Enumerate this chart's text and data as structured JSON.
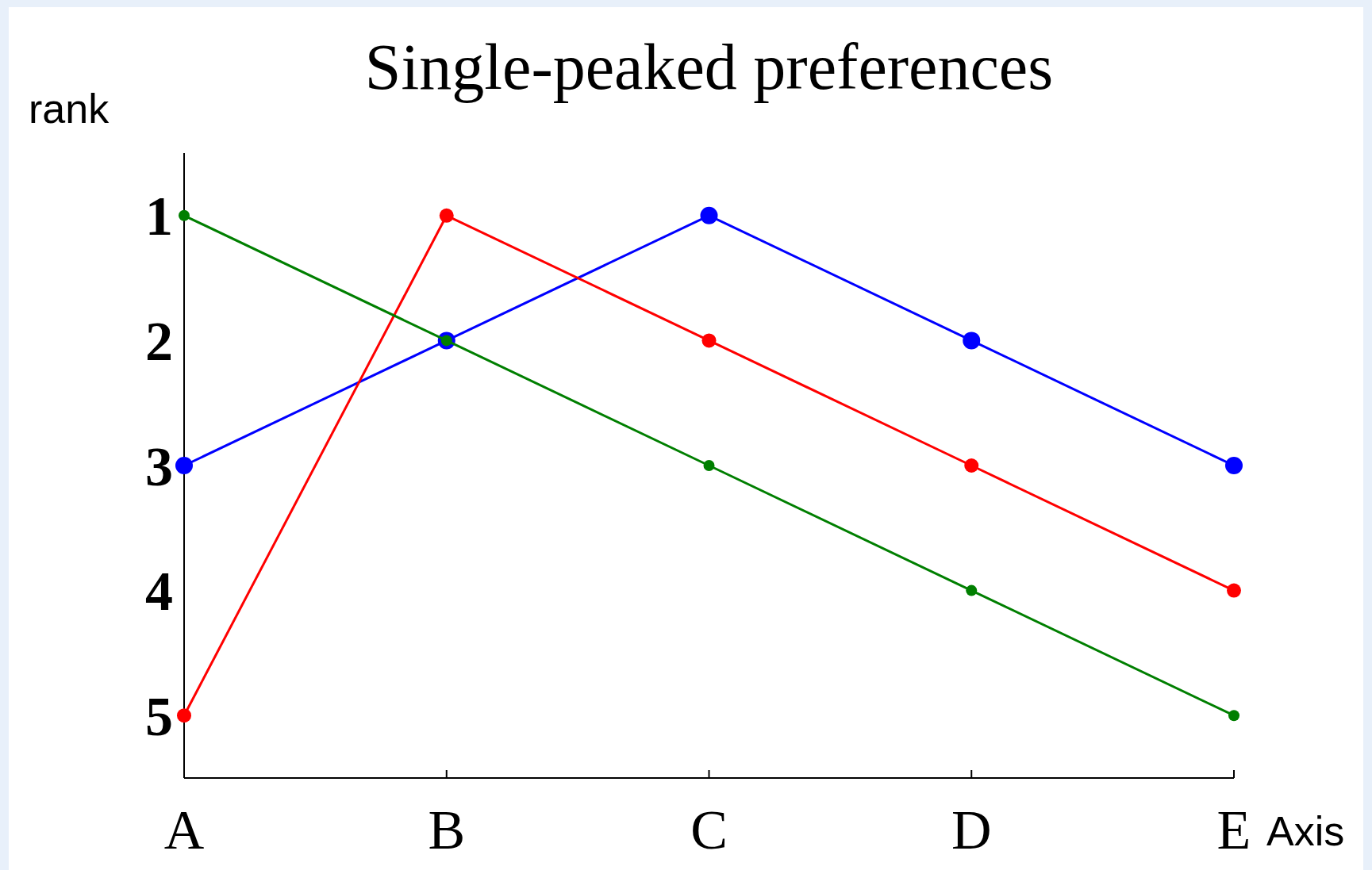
{
  "chart_data": {
    "type": "line",
    "title": "Single-peaked preferences",
    "xlabel": "Axis",
    "ylabel": "rank",
    "categories": [
      "A",
      "B",
      "C",
      "D",
      "E"
    ],
    "series": [
      {
        "color": "#0000ff",
        "values": [
          3,
          2,
          1,
          2,
          3
        ]
      },
      {
        "color": "#ff0000",
        "values": [
          5,
          1,
          2,
          3,
          4
        ]
      },
      {
        "color": "#007f00",
        "values": [
          1,
          2,
          3,
          4,
          5
        ]
      }
    ],
    "ylim": [
      5.5,
      0.5
    ],
    "yticks": [
      1,
      2,
      3,
      4,
      5
    ],
    "grid": false,
    "marker": "circle",
    "line_style": "solid"
  }
}
